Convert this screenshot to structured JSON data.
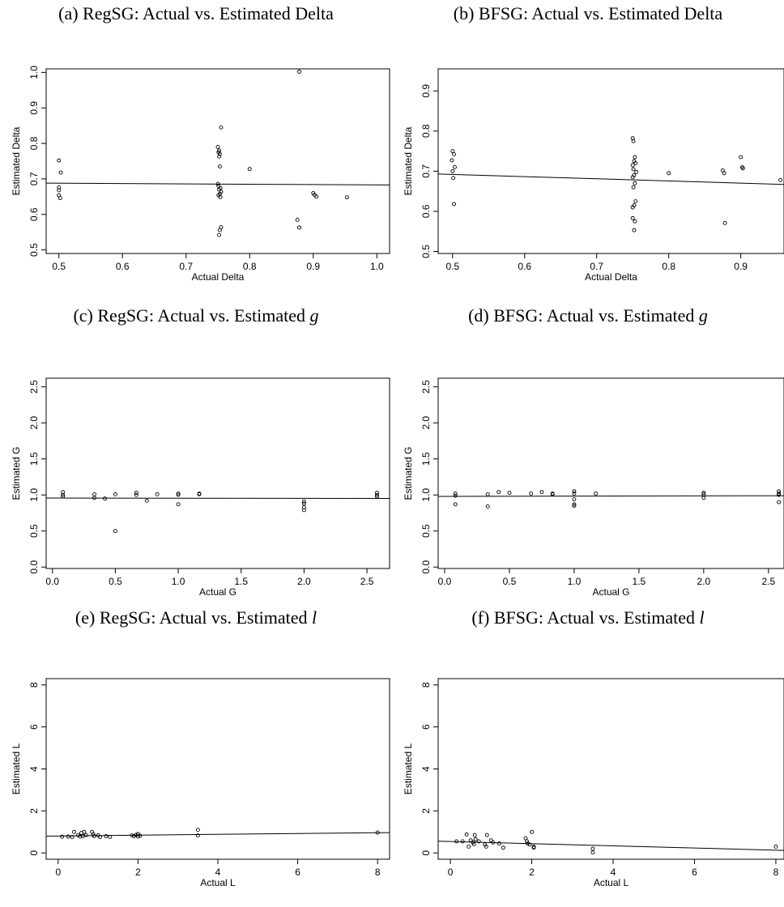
{
  "chart_data": [
    {
      "type": "scatter",
      "caption_prefix": "(a) RegSG: Actual vs. Estimated ",
      "caption_var": "Delta",
      "caption_italic": false,
      "xlabel": "Actual Delta",
      "ylabel": "Estimated Delta",
      "xlim": [
        0.48,
        1.02
      ],
      "ylim": [
        0.49,
        1.01
      ],
      "xticks": [
        0.5,
        0.6,
        0.7,
        0.8,
        0.9,
        1.0
      ],
      "xtick_labels": [
        "0.5",
        "0.6",
        "0.7",
        "0.8",
        "0.9",
        "1.0"
      ],
      "yticks": [
        0.5,
        0.6,
        0.7,
        0.8,
        0.9,
        1.0
      ],
      "ytick_labels": [
        "0.5",
        "0.6",
        "0.7",
        "0.8",
        "0.9",
        "1.0"
      ],
      "fit_line": [
        [
          0.48,
          0.688
        ],
        [
          1.02,
          0.683
        ]
      ],
      "points": [
        [
          0.5,
          0.752
        ],
        [
          0.503,
          0.718
        ],
        [
          0.5,
          0.676
        ],
        [
          0.5,
          0.668
        ],
        [
          0.5,
          0.654
        ],
        [
          0.502,
          0.646
        ],
        [
          0.75,
          0.79
        ],
        [
          0.752,
          0.78
        ],
        [
          0.751,
          0.775
        ],
        [
          0.753,
          0.77
        ],
        [
          0.752,
          0.763
        ],
        [
          0.755,
          0.845
        ],
        [
          0.753,
          0.735
        ],
        [
          0.75,
          0.686
        ],
        [
          0.751,
          0.68
        ],
        [
          0.754,
          0.674
        ],
        [
          0.752,
          0.67
        ],
        [
          0.755,
          0.664
        ],
        [
          0.753,
          0.658
        ],
        [
          0.751,
          0.654
        ],
        [
          0.754,
          0.649
        ],
        [
          0.755,
          0.564
        ],
        [
          0.753,
          0.556
        ],
        [
          0.752,
          0.542
        ],
        [
          0.8,
          0.728
        ],
        [
          0.878,
          1.002
        ],
        [
          0.875,
          0.585
        ],
        [
          0.878,
          0.563
        ],
        [
          0.9,
          0.66
        ],
        [
          0.902,
          0.655
        ],
        [
          0.905,
          0.65
        ],
        [
          0.953,
          0.648
        ]
      ]
    },
    {
      "type": "scatter",
      "caption_prefix": "(b) BFSG: Actual vs. Estimated ",
      "caption_var": "Delta",
      "caption_italic": false,
      "xlabel": "Actual Delta",
      "ylabel": "Estimated Delta",
      "xlim": [
        0.48,
        0.96
      ],
      "ylim": [
        0.495,
        0.955
      ],
      "xticks": [
        0.5,
        0.6,
        0.7,
        0.8,
        0.9
      ],
      "xtick_labels": [
        "0.5",
        "0.6",
        "0.7",
        "0.8",
        "0.9"
      ],
      "yticks": [
        0.5,
        0.6,
        0.7,
        0.8,
        0.9
      ],
      "ytick_labels": [
        "0.5",
        "0.6",
        "0.7",
        "0.8",
        "0.9"
      ],
      "fit_line": [
        [
          0.48,
          0.693
        ],
        [
          0.96,
          0.667
        ]
      ],
      "points": [
        [
          0.5,
          0.75
        ],
        [
          0.502,
          0.742
        ],
        [
          0.499,
          0.727
        ],
        [
          0.503,
          0.71
        ],
        [
          0.5,
          0.7
        ],
        [
          0.501,
          0.683
        ],
        [
          0.502,
          0.618
        ],
        [
          0.75,
          0.782
        ],
        [
          0.751,
          0.775
        ],
        [
          0.753,
          0.735
        ],
        [
          0.752,
          0.725
        ],
        [
          0.754,
          0.72
        ],
        [
          0.75,
          0.715
        ],
        [
          0.751,
          0.705
        ],
        [
          0.755,
          0.698
        ],
        [
          0.752,
          0.69
        ],
        [
          0.75,
          0.685
        ],
        [
          0.753,
          0.67
        ],
        [
          0.751,
          0.66
        ],
        [
          0.754,
          0.625
        ],
        [
          0.752,
          0.615
        ],
        [
          0.75,
          0.61
        ],
        [
          0.75,
          0.583
        ],
        [
          0.753,
          0.575
        ],
        [
          0.752,
          0.553
        ],
        [
          0.8,
          0.695
        ],
        [
          0.875,
          0.702
        ],
        [
          0.877,
          0.695
        ],
        [
          0.878,
          0.571
        ],
        [
          0.9,
          0.735
        ],
        [
          0.902,
          0.71
        ],
        [
          0.903,
          0.707
        ],
        [
          0.955,
          0.678
        ]
      ]
    },
    {
      "type": "scatter",
      "caption_prefix": "(c) RegSG: Actual vs. Estimated ",
      "caption_var": "g",
      "caption_italic": true,
      "xlabel": "Actual G",
      "ylabel": "Estimated G",
      "xlim": [
        -0.05,
        2.68
      ],
      "ylim": [
        -0.02,
        2.62
      ],
      "xticks": [
        0,
        0.5,
        1.0,
        1.5,
        2.0,
        2.5
      ],
      "xtick_labels": [
        "0.0",
        "0.5",
        "1.0",
        "1.5",
        "2.0",
        "2.5"
      ],
      "yticks": [
        0,
        0.5,
        1.0,
        1.5,
        2.0,
        2.5
      ],
      "ytick_labels": [
        "0.0",
        "0.5",
        "1.0",
        "1.5",
        "2.0",
        "2.5"
      ],
      "fit_line": [
        [
          -0.05,
          0.957
        ],
        [
          2.68,
          0.952
        ]
      ],
      "points": [
        [
          0.083,
          1.04
        ],
        [
          0.083,
          1.0
        ],
        [
          0.083,
          0.98
        ],
        [
          0.333,
          1.01
        ],
        [
          0.333,
          0.96
        ],
        [
          0.417,
          0.95
        ],
        [
          0.5,
          1.01
        ],
        [
          0.5,
          0.5
        ],
        [
          0.667,
          1.03
        ],
        [
          0.667,
          1.0
        ],
        [
          0.75,
          0.92
        ],
        [
          0.833,
          1.01
        ],
        [
          1.0,
          1.02
        ],
        [
          1.0,
          1.0
        ],
        [
          1.0,
          0.87
        ],
        [
          1.167,
          1.02
        ],
        [
          1.167,
          1.01
        ],
        [
          2.0,
          0.91
        ],
        [
          2.0,
          0.88
        ],
        [
          2.0,
          0.83
        ],
        [
          2.0,
          0.79
        ],
        [
          2.58,
          1.03
        ],
        [
          2.58,
          1.0
        ],
        [
          2.58,
          0.98
        ]
      ]
    },
    {
      "type": "scatter",
      "caption_prefix": "(d) BFSG: Actual vs. Estimated ",
      "caption_var": "g",
      "caption_italic": true,
      "xlabel": "Actual G",
      "ylabel": "Estimated G",
      "xlim": [
        -0.05,
        2.62
      ],
      "ylim": [
        -0.02,
        2.62
      ],
      "xticks": [
        0,
        0.5,
        1.0,
        1.5,
        2.0,
        2.5
      ],
      "xtick_labels": [
        "0.0",
        "0.5",
        "1.0",
        "1.5",
        "2.0",
        "2.5"
      ],
      "yticks": [
        0,
        0.5,
        1.0,
        1.5,
        2.0,
        2.5
      ],
      "ytick_labels": [
        "0.0",
        "0.5",
        "1.0",
        "1.5",
        "2.0",
        "2.5"
      ],
      "fit_line": [
        [
          -0.05,
          0.98
        ],
        [
          2.62,
          0.99
        ]
      ],
      "points": [
        [
          0.083,
          1.02
        ],
        [
          0.083,
          0.99
        ],
        [
          0.083,
          0.87
        ],
        [
          0.333,
          1.01
        ],
        [
          0.333,
          0.84
        ],
        [
          0.417,
          1.04
        ],
        [
          0.5,
          1.03
        ],
        [
          0.667,
          1.02
        ],
        [
          0.75,
          1.04
        ],
        [
          0.833,
          1.02
        ],
        [
          0.833,
          1.01
        ],
        [
          1.0,
          1.05
        ],
        [
          1.0,
          1.02
        ],
        [
          1.0,
          0.94
        ],
        [
          1.0,
          0.87
        ],
        [
          1.0,
          0.85
        ],
        [
          1.167,
          1.02
        ],
        [
          2.0,
          1.03
        ],
        [
          2.0,
          1.01
        ],
        [
          2.0,
          0.96
        ],
        [
          2.58,
          1.05
        ],
        [
          2.58,
          1.02
        ],
        [
          2.58,
          1.0
        ],
        [
          2.58,
          0.9
        ]
      ]
    },
    {
      "type": "scatter",
      "caption_prefix": "(e) RegSG: Actual vs. Estimated ",
      "caption_var": "l",
      "caption_italic": true,
      "xlabel": "Actual L",
      "ylabel": "Estimated L",
      "xlim": [
        -0.3,
        8.3
      ],
      "ylim": [
        -0.3,
        8.3
      ],
      "xticks": [
        0,
        2,
        4,
        6,
        8
      ],
      "xtick_labels": [
        "0",
        "2",
        "4",
        "6",
        "8"
      ],
      "yticks": [
        0,
        2,
        4,
        6,
        8
      ],
      "ytick_labels": [
        "0",
        "2",
        "4",
        "6",
        "8"
      ],
      "fit_line": [
        [
          -0.3,
          0.8
        ],
        [
          8.3,
          0.97
        ]
      ],
      "points": [
        [
          0.1,
          0.77
        ],
        [
          0.25,
          0.78
        ],
        [
          0.35,
          0.76
        ],
        [
          0.4,
          1.0
        ],
        [
          0.5,
          0.85
        ],
        [
          0.55,
          0.78
        ],
        [
          0.58,
          0.95
        ],
        [
          0.62,
          0.8
        ],
        [
          0.65,
          1.0
        ],
        [
          0.7,
          0.85
        ],
        [
          0.85,
          1.0
        ],
        [
          0.88,
          0.88
        ],
        [
          0.9,
          0.8
        ],
        [
          1.0,
          0.84
        ],
        [
          1.05,
          0.76
        ],
        [
          1.2,
          0.8
        ],
        [
          1.3,
          0.76
        ],
        [
          1.85,
          0.83
        ],
        [
          1.9,
          0.8
        ],
        [
          1.95,
          0.86
        ],
        [
          2.0,
          0.78
        ],
        [
          2.0,
          0.9
        ],
        [
          2.05,
          0.82
        ],
        [
          3.5,
          1.1
        ],
        [
          3.5,
          0.83
        ],
        [
          8.0,
          0.97
        ]
      ]
    },
    {
      "type": "scatter",
      "caption_prefix": "(f) BFSG: Actual vs. Estimated ",
      "caption_var": "l",
      "caption_italic": true,
      "xlabel": "Actual L",
      "ylabel": "Estimated L",
      "xlim": [
        -0.3,
        8.2
      ],
      "ylim": [
        -0.3,
        8.3
      ],
      "xticks": [
        0,
        2,
        4,
        6,
        8
      ],
      "xtick_labels": [
        "0",
        "2",
        "4",
        "6",
        "8"
      ],
      "yticks": [
        0,
        2,
        4,
        6,
        8
      ],
      "ytick_labels": [
        "0",
        "2",
        "4",
        "6",
        "8"
      ],
      "fit_line": [
        [
          -0.3,
          0.56
        ],
        [
          8.2,
          0.12
        ]
      ],
      "points": [
        [
          0.15,
          0.55
        ],
        [
          0.3,
          0.55
        ],
        [
          0.4,
          0.88
        ],
        [
          0.45,
          0.3
        ],
        [
          0.5,
          0.6
        ],
        [
          0.55,
          0.5
        ],
        [
          0.58,
          0.42
        ],
        [
          0.6,
          0.85
        ],
        [
          0.62,
          0.65
        ],
        [
          0.7,
          0.55
        ],
        [
          0.85,
          0.4
        ],
        [
          0.88,
          0.3
        ],
        [
          0.9,
          0.85
        ],
        [
          1.0,
          0.6
        ],
        [
          1.05,
          0.5
        ],
        [
          1.2,
          0.45
        ],
        [
          1.3,
          0.25
        ],
        [
          1.85,
          0.7
        ],
        [
          1.88,
          0.55
        ],
        [
          1.9,
          0.45
        ],
        [
          1.95,
          0.4
        ],
        [
          2.0,
          1.0
        ],
        [
          2.05,
          0.3
        ],
        [
          2.05,
          0.25
        ],
        [
          3.5,
          0.2
        ],
        [
          3.5,
          0.02
        ],
        [
          8.0,
          0.3
        ]
      ]
    }
  ]
}
